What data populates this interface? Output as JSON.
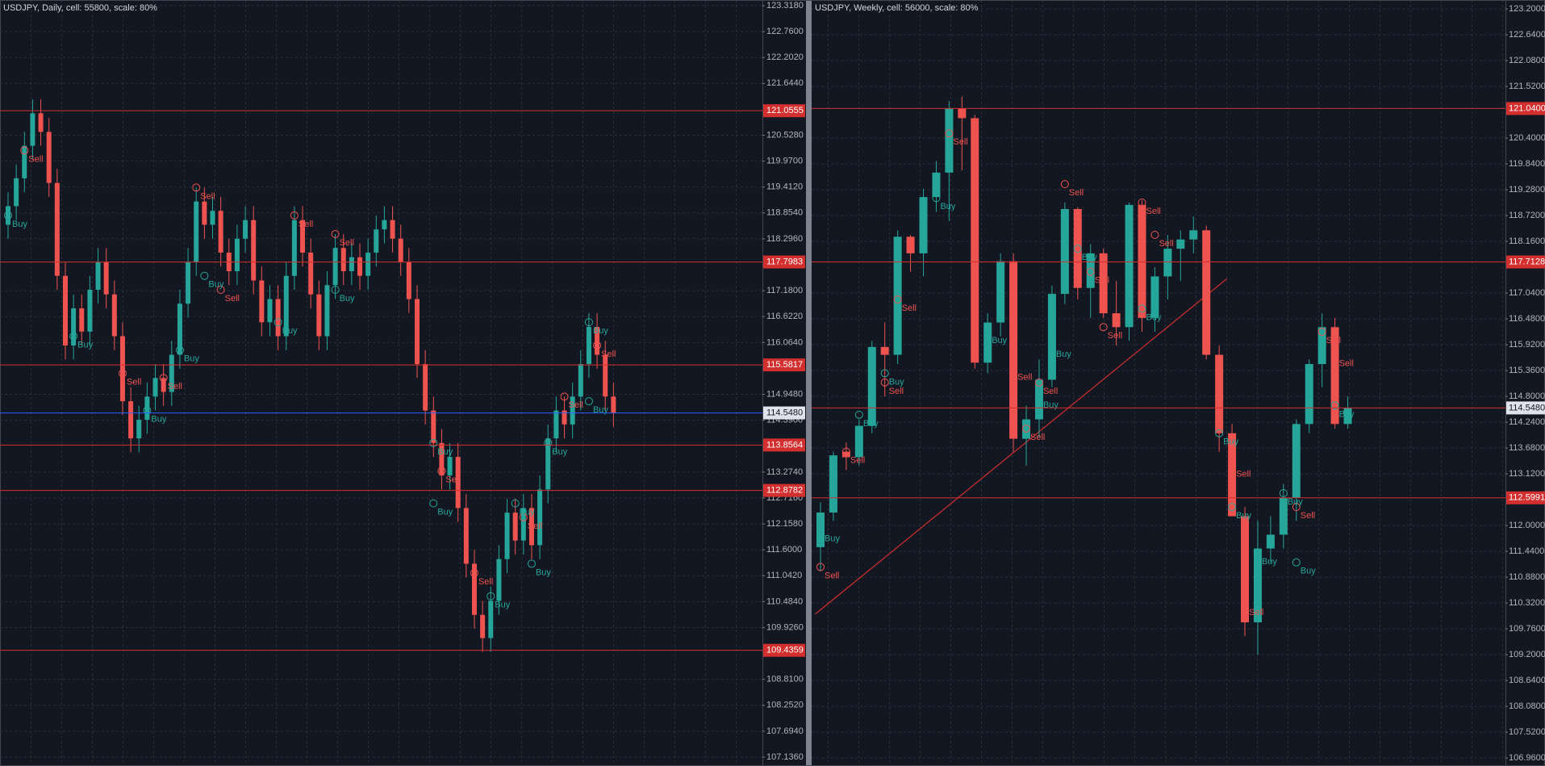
{
  "chart_data": [
    {
      "type": "candlestick",
      "title": "USDJPY, Daily, cell: 55800, scale: 80%",
      "open": [
        118.6,
        119.0,
        119.6,
        120.3,
        121.0,
        120.6,
        119.5,
        117.5,
        116.0,
        116.8,
        116.3,
        117.2,
        117.8,
        117.1,
        116.2,
        114.8,
        114.0,
        114.4,
        114.9,
        115.3,
        115.0,
        115.8,
        116.9,
        117.8,
        119.1,
        118.6,
        118.9,
        118.0,
        117.6,
        118.3,
        118.7,
        117.4,
        116.5,
        117.0,
        116.2,
        117.5,
        118.7,
        118.0,
        117.1,
        116.2,
        117.3,
        118.1,
        117.6,
        117.9,
        117.5,
        118.0,
        118.5,
        118.7,
        118.3,
        117.8,
        117.0,
        115.6,
        114.6,
        113.9,
        113.2,
        113.6,
        112.5,
        111.3,
        110.2,
        109.7,
        110.5,
        111.4,
        112.4,
        111.8,
        112.5,
        111.7,
        112.9,
        114.0,
        114.6,
        114.3,
        114.9,
        115.6,
        116.4,
        115.8,
        114.9
      ],
      "high": [
        119.3,
        119.9,
        120.6,
        121.3,
        121.3,
        120.9,
        119.8,
        117.8,
        117.1,
        117.1,
        117.5,
        118.1,
        118.1,
        117.4,
        116.5,
        115.1,
        114.7,
        115.2,
        115.6,
        115.6,
        116.1,
        117.2,
        118.1,
        119.4,
        119.4,
        119.2,
        119.2,
        118.3,
        118.6,
        119.0,
        119.0,
        117.7,
        117.3,
        117.3,
        117.8,
        119.0,
        119.0,
        118.3,
        117.4,
        117.6,
        118.4,
        118.4,
        118.2,
        118.2,
        118.3,
        118.8,
        119.0,
        119.0,
        118.6,
        118.1,
        117.3,
        115.9,
        114.9,
        114.2,
        113.9,
        113.9,
        112.8,
        111.6,
        110.5,
        110.8,
        111.7,
        112.7,
        112.7,
        112.8,
        112.8,
        113.2,
        114.3,
        114.9,
        114.9,
        115.2,
        115.9,
        116.7,
        116.7,
        116.1,
        115.2
      ],
      "low": [
        118.3,
        118.7,
        119.3,
        120.0,
        120.3,
        119.2,
        117.2,
        115.7,
        115.7,
        116.0,
        116.0,
        116.9,
        116.8,
        115.9,
        114.5,
        113.7,
        113.7,
        114.1,
        114.6,
        114.7,
        114.7,
        115.5,
        116.6,
        117.5,
        118.3,
        118.3,
        117.7,
        117.3,
        117.3,
        118.0,
        117.1,
        116.2,
        116.2,
        115.9,
        115.9,
        117.2,
        117.7,
        116.8,
        115.9,
        115.9,
        117.0,
        117.3,
        117.3,
        117.2,
        117.2,
        117.7,
        118.2,
        118.0,
        117.5,
        116.7,
        115.3,
        114.3,
        113.6,
        112.9,
        112.9,
        112.2,
        111.0,
        109.9,
        109.4,
        109.4,
        110.2,
        111.1,
        111.5,
        111.5,
        111.4,
        111.4,
        112.6,
        113.7,
        114.0,
        114.0,
        114.6,
        115.3,
        115.5,
        114.6,
        114.25
      ],
      "close": [
        119.0,
        119.6,
        120.3,
        121.0,
        120.6,
        119.5,
        117.5,
        116.0,
        116.8,
        116.3,
        117.2,
        117.8,
        117.1,
        116.2,
        114.8,
        114.0,
        114.4,
        114.9,
        115.3,
        115.0,
        115.8,
        116.9,
        117.8,
        119.1,
        118.6,
        118.9,
        118.0,
        117.6,
        118.3,
        118.7,
        117.4,
        116.5,
        117.0,
        116.2,
        117.5,
        118.7,
        118.0,
        117.1,
        116.2,
        117.3,
        118.1,
        117.6,
        117.9,
        117.5,
        118.0,
        118.5,
        118.7,
        118.3,
        117.8,
        117.0,
        115.6,
        114.6,
        113.9,
        113.2,
        113.6,
        112.5,
        111.3,
        110.2,
        109.7,
        110.5,
        111.4,
        112.4,
        111.8,
        112.5,
        111.7,
        112.9,
        114.0,
        114.6,
        114.3,
        114.9,
        115.6,
        116.4,
        115.8,
        114.9,
        114.55
      ],
      "up_color": "#26a69a",
      "down_color": "#ef5350",
      "level_color": "#d32f2f",
      "last_color": "#2962ff",
      "grid": true,
      "ylim": [
        107.136,
        123.318
      ],
      "yticks": [
        {
          "value": 123.318,
          "label": "123.3180"
        },
        {
          "value": 122.76,
          "label": "122.7600"
        },
        {
          "value": 122.202,
          "label": "122.2020"
        },
        {
          "value": 121.644,
          "label": "121.6440"
        },
        {
          "value": 120.528,
          "label": "120.5280"
        },
        {
          "value": 119.97,
          "label": "119.9700"
        },
        {
          "value": 119.412,
          "label": "119.4120"
        },
        {
          "value": 118.854,
          "label": "118.8540"
        },
        {
          "value": 118.296,
          "label": "118.2960"
        },
        {
          "value": 117.18,
          "label": "117.1800"
        },
        {
          "value": 116.622,
          "label": "116.6220"
        },
        {
          "value": 116.064,
          "label": "116.0640"
        },
        {
          "value": 114.948,
          "label": "114.9480"
        },
        {
          "value": 114.39,
          "label": "114.3900"
        },
        {
          "value": 113.274,
          "label": "113.2740"
        },
        {
          "value": 112.716,
          "label": "112.7160"
        },
        {
          "value": 112.158,
          "label": "112.1580"
        },
        {
          "value": 111.6,
          "label": "111.6000"
        },
        {
          "value": 111.042,
          "label": "111.0420"
        },
        {
          "value": 110.484,
          "label": "110.4840"
        },
        {
          "value": 109.926,
          "label": "109.9260"
        },
        {
          "value": 108.81,
          "label": "108.8100"
        },
        {
          "value": 108.252,
          "label": "108.2520"
        },
        {
          "value": 107.694,
          "label": "107.6940"
        },
        {
          "value": 107.136,
          "label": "107.1360"
        }
      ],
      "levels": [
        {
          "value": 121.0555,
          "label": "121.0555"
        },
        {
          "value": 117.7983,
          "label": "117.7983"
        },
        {
          "value": 115.5817,
          "label": "115.5817"
        },
        {
          "value": 113.8564,
          "label": "113.8564"
        },
        {
          "value": 112.8782,
          "label": "112.8782"
        },
        {
          "value": 109.4359,
          "label": "109.4359"
        }
      ],
      "last": {
        "value": 114.548,
        "label": "114.5480"
      },
      "signals": [
        {
          "name": "Sell",
          "color": "#ef5350",
          "points": [
            {
              "x": 2,
              "y": 120.2
            },
            {
              "x": 14,
              "y": 115.4
            },
            {
              "x": 19,
              "y": 115.3
            },
            {
              "x": 23,
              "y": 119.4
            },
            {
              "x": 26,
              "y": 117.2
            },
            {
              "x": 35,
              "y": 118.8
            },
            {
              "x": 40,
              "y": 118.4
            },
            {
              "x": 53,
              "y": 113.3
            },
            {
              "x": 57,
              "y": 111.1
            },
            {
              "x": 63,
              "y": 112.3
            },
            {
              "x": 68,
              "y": 114.9
            },
            {
              "x": 72,
              "y": 116.0
            }
          ]
        },
        {
          "name": "Buy",
          "color": "#26a69a",
          "points": [
            {
              "x": 0,
              "y": 118.8
            },
            {
              "x": 8,
              "y": 116.2
            },
            {
              "x": 17,
              "y": 114.6
            },
            {
              "x": 21,
              "y": 115.9
            },
            {
              "x": 24,
              "y": 117.5
            },
            {
              "x": 33,
              "y": 116.5
            },
            {
              "x": 40,
              "y": 117.2
            },
            {
              "x": 52,
              "y": 113.9
            },
            {
              "x": 52,
              "y": 112.6
            },
            {
              "x": 59,
              "y": 110.6
            },
            {
              "x": 62,
              "y": 112.6
            },
            {
              "x": 64,
              "y": 111.3
            },
            {
              "x": 66,
              "y": 113.9
            },
            {
              "x": 71,
              "y": 116.5
            },
            {
              "x": 71,
              "y": 114.8
            }
          ]
        }
      ]
    },
    {
      "type": "candlestick",
      "title": "USDJPY, Weekly, cell: 56000, scale: 80%",
      "open": [
        111.53,
        112.28,
        113.6,
        113.48,
        114.16,
        115.87,
        115.7,
        118.26,
        117.9,
        119.12,
        119.65,
        121.04,
        120.83,
        115.53,
        116.4,
        117.73,
        113.88,
        114.3,
        115.16,
        117.02,
        118.86,
        117.15,
        117.9,
        116.6,
        116.3,
        118.95,
        116.5,
        117.4,
        118.0,
        118.2,
        118.4,
        115.7,
        114.0,
        112.2,
        109.9,
        111.5,
        111.8,
        112.6,
        114.2,
        115.5,
        116.3,
        114.2
      ],
      "high": [
        112.5,
        113.6,
        113.8,
        114.3,
        116.0,
        116.4,
        118.4,
        118.3,
        119.3,
        119.9,
        121.2,
        121.3,
        120.9,
        116.6,
        117.9,
        117.9,
        114.6,
        115.6,
        117.2,
        119.0,
        118.9,
        118.1,
        118.0,
        117.3,
        119.0,
        119.05,
        117.6,
        118.3,
        118.4,
        118.7,
        118.5,
        115.9,
        114.2,
        112.4,
        112.1,
        112.2,
        112.9,
        114.3,
        115.6,
        116.6,
        116.5,
        114.8
      ],
      "low": [
        111.0,
        112.1,
        113.2,
        113.3,
        114.0,
        114.8,
        115.5,
        117.5,
        117.4,
        118.8,
        118.6,
        119.7,
        115.4,
        115.3,
        116.1,
        113.6,
        113.3,
        113.9,
        115.0,
        116.8,
        116.9,
        116.5,
        116.5,
        115.9,
        116.0,
        116.2,
        116.2,
        116.9,
        117.3,
        117.9,
        115.6,
        113.6,
        112.2,
        109.6,
        109.2,
        111.2,
        111.5,
        112.1,
        114.0,
        115.0,
        114.1,
        114.1
      ],
      "close": [
        112.28,
        113.52,
        113.48,
        114.16,
        115.87,
        115.7,
        118.26,
        117.9,
        119.12,
        119.65,
        121.04,
        120.83,
        115.53,
        116.4,
        117.73,
        113.88,
        114.3,
        115.16,
        117.02,
        118.86,
        117.15,
        117.9,
        116.6,
        116.3,
        118.95,
        116.5,
        117.4,
        118.0,
        118.2,
        118.4,
        115.7,
        114.0,
        112.2,
        109.9,
        111.5,
        111.8,
        112.6,
        114.2,
        115.5,
        116.3,
        114.2,
        114.55
      ],
      "up_color": "#26a69a",
      "down_color": "#ef5350",
      "level_color": "#d32f2f",
      "last_color": "#d32f2f",
      "grid": true,
      "ylim": [
        106.96,
        123.2
      ],
      "yticks": [
        {
          "value": 123.2,
          "label": "123.2000"
        },
        {
          "value": 122.64,
          "label": "122.6400"
        },
        {
          "value": 122.08,
          "label": "122.0800"
        },
        {
          "value": 121.52,
          "label": "121.5200"
        },
        {
          "value": 120.4,
          "label": "120.4000"
        },
        {
          "value": 119.84,
          "label": "119.8400"
        },
        {
          "value": 119.28,
          "label": "119.2800"
        },
        {
          "value": 118.72,
          "label": "118.7200"
        },
        {
          "value": 118.16,
          "label": "118.1600"
        },
        {
          "value": 117.04,
          "label": "117.0400"
        },
        {
          "value": 116.48,
          "label": "116.4800"
        },
        {
          "value": 115.92,
          "label": "115.9200"
        },
        {
          "value": 115.36,
          "label": "115.3600"
        },
        {
          "value": 114.8,
          "label": "114.8000"
        },
        {
          "value": 114.24,
          "label": "114.2400"
        },
        {
          "value": 113.68,
          "label": "113.6800"
        },
        {
          "value": 113.12,
          "label": "113.1200"
        },
        {
          "value": 112.0,
          "label": "112.0000"
        },
        {
          "value": 111.44,
          "label": "111.4400"
        },
        {
          "value": 110.88,
          "label": "110.8800"
        },
        {
          "value": 110.32,
          "label": "110.3200"
        },
        {
          "value": 109.76,
          "label": "109.7600"
        },
        {
          "value": 109.2,
          "label": "109.2000"
        },
        {
          "value": 108.64,
          "label": "108.6400"
        },
        {
          "value": 108.08,
          "label": "108.0800"
        },
        {
          "value": 107.52,
          "label": "107.5200"
        },
        {
          "value": 106.96,
          "label": "106.9600"
        }
      ],
      "levels": [
        {
          "value": 121.04,
          "label": "121.0400"
        },
        {
          "value": 117.7128,
          "label": "117.7128"
        },
        {
          "value": 112.5991,
          "label": "112.5991"
        }
      ],
      "last": {
        "value": 114.548,
        "label": "114.5480"
      },
      "trendline": {
        "x": [
          -0.4,
          31.6
        ],
        "y": [
          110.08,
          117.35
        ]
      },
      "signals": [
        {
          "name": "Sell",
          "color": "#ef5350",
          "points": [
            {
              "x": 0,
              "y": 111.1
            },
            {
              "x": 2,
              "y": 113.6
            },
            {
              "x": 5,
              "y": 115.1
            },
            {
              "x": 6,
              "y": 116.9
            },
            {
              "x": 10,
              "y": 120.5
            },
            {
              "x": 15,
              "y": 115.4
            },
            {
              "x": 16,
              "y": 114.1
            },
            {
              "x": 17,
              "y": 115.1
            },
            {
              "x": 19,
              "y": 119.4
            },
            {
              "x": 21,
              "y": 117.5
            },
            {
              "x": 22,
              "y": 116.3
            },
            {
              "x": 25,
              "y": 119.0
            },
            {
              "x": 26,
              "y": 118.3
            },
            {
              "x": 32,
              "y": 113.3
            },
            {
              "x": 33,
              "y": 110.3
            },
            {
              "x": 37,
              "y": 112.4
            },
            {
              "x": 39,
              "y": 116.2
            },
            {
              "x": 40,
              "y": 115.7
            }
          ]
        },
        {
          "name": "Buy",
          "color": "#26a69a",
          "points": [
            {
              "x": 0,
              "y": 111.9
            },
            {
              "x": 3,
              "y": 114.4
            },
            {
              "x": 5,
              "y": 115.3
            },
            {
              "x": 9,
              "y": 119.1
            },
            {
              "x": 13,
              "y": 116.2
            },
            {
              "x": 17,
              "y": 114.8
            },
            {
              "x": 18,
              "y": 115.9
            },
            {
              "x": 20,
              "y": 118.0
            },
            {
              "x": 25,
              "y": 116.7
            },
            {
              "x": 31,
              "y": 114.0
            },
            {
              "x": 32,
              "y": 112.4
            },
            {
              "x": 34,
              "y": 111.4
            },
            {
              "x": 36,
              "y": 112.7
            },
            {
              "x": 37,
              "y": 111.2
            },
            {
              "x": 40,
              "y": 114.6
            }
          ]
        }
      ]
    }
  ]
}
